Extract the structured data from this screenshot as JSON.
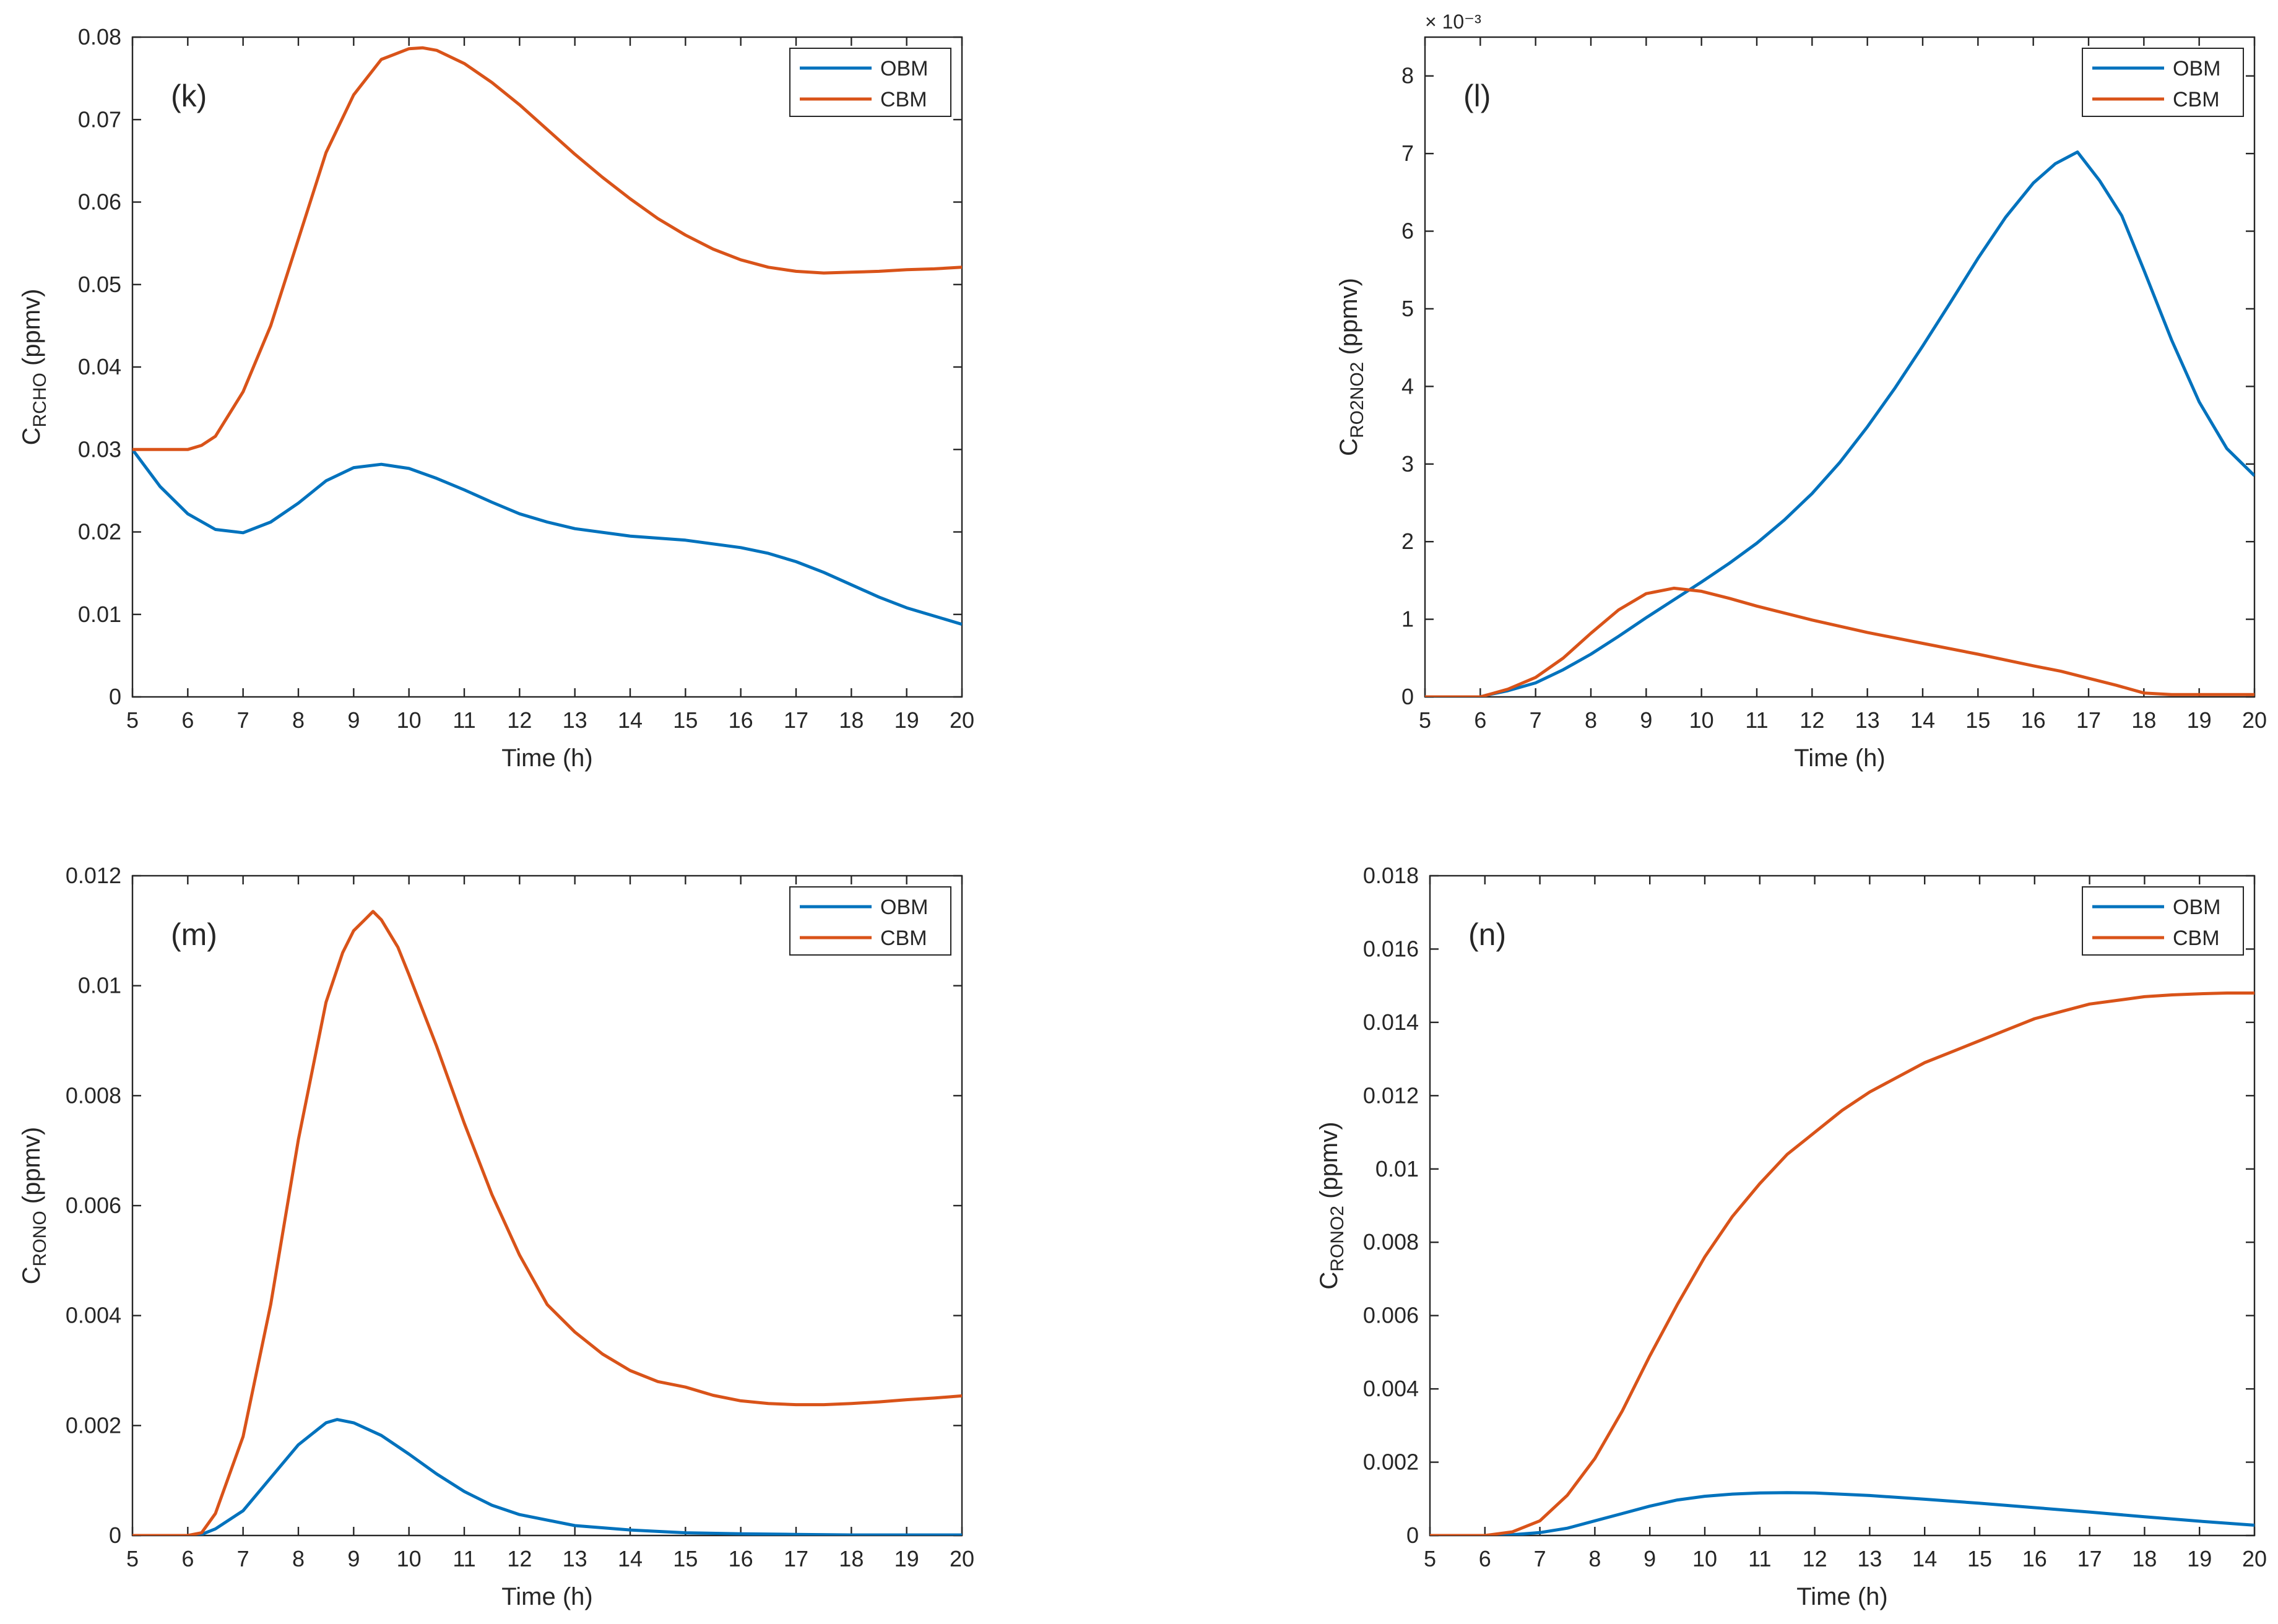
{
  "chart_data": [
    {
      "type": "line",
      "panel": "(k)",
      "xlabel": "Time (h)",
      "ylabel_main": "C",
      "ylabel_sub": "RCHO",
      "ylabel_unit": " (ppmv)",
      "xlim": [
        5,
        20
      ],
      "ylim": [
        0,
        0.08
      ],
      "xticks": [
        5,
        6,
        7,
        8,
        9,
        10,
        11,
        12,
        13,
        14,
        15,
        16,
        17,
        18,
        19,
        20
      ],
      "yticks": [
        0,
        0.01,
        0.02,
        0.03,
        0.04,
        0.05,
        0.06,
        0.07,
        0.08
      ],
      "ytick_labels": [
        "0",
        "0.01",
        "0.02",
        "0.03",
        "0.04",
        "0.05",
        "0.06",
        "0.07",
        "0.08"
      ],
      "exponent_label": "",
      "legend": [
        "OBM",
        "CBM"
      ],
      "series": [
        {
          "name": "OBM",
          "color": "#0072BD",
          "x": [
            5,
            5.5,
            6,
            6.5,
            7,
            7.5,
            8,
            8.5,
            9,
            9.5,
            10,
            10.5,
            11,
            11.5,
            12,
            12.5,
            13,
            14,
            15,
            16,
            16.5,
            17,
            17.5,
            18,
            18.5,
            19,
            19.5,
            20
          ],
          "y": [
            0.03,
            0.0255,
            0.0222,
            0.0203,
            0.0199,
            0.0212,
            0.0235,
            0.0262,
            0.0278,
            0.0282,
            0.0277,
            0.0265,
            0.0251,
            0.0236,
            0.0222,
            0.0212,
            0.0204,
            0.0195,
            0.019,
            0.0181,
            0.0174,
            0.0164,
            0.0151,
            0.0136,
            0.0121,
            0.0108,
            0.0098,
            0.0088
          ]
        },
        {
          "name": "CBM",
          "color": "#D95319",
          "x": [
            5,
            5.5,
            6,
            6.25,
            6.5,
            7,
            7.5,
            8,
            8.5,
            9,
            9.5,
            10,
            10.25,
            10.5,
            11,
            11.5,
            12,
            12.5,
            13,
            13.5,
            14,
            14.5,
            15,
            15.5,
            16,
            16.5,
            17,
            17.5,
            18,
            18.5,
            19,
            19.5,
            20
          ],
          "y": [
            0.03,
            0.03,
            0.03,
            0.0305,
            0.0316,
            0.037,
            0.045,
            0.0555,
            0.066,
            0.073,
            0.0773,
            0.0786,
            0.0787,
            0.0784,
            0.0768,
            0.0745,
            0.0718,
            0.0688,
            0.0658,
            0.063,
            0.0604,
            0.058,
            0.056,
            0.0543,
            0.053,
            0.0521,
            0.0516,
            0.0514,
            0.0515,
            0.0516,
            0.0518,
            0.0519,
            0.0521
          ]
        }
      ]
    },
    {
      "type": "line",
      "panel": "(l)",
      "xlabel": "Time (h)",
      "ylabel_main": "C",
      "ylabel_sub": "RO2NO2",
      "ylabel_unit": " (ppmv)",
      "xlim": [
        5,
        20
      ],
      "ylim": [
        0,
        8.5
      ],
      "xticks": [
        5,
        6,
        7,
        8,
        9,
        10,
        11,
        12,
        13,
        14,
        15,
        16,
        17,
        18,
        19,
        20
      ],
      "yticks": [
        0,
        1,
        2,
        3,
        4,
        5,
        6,
        7,
        8
      ],
      "ytick_labels": [
        "0",
        "1",
        "2",
        "3",
        "4",
        "5",
        "6",
        "7",
        "8"
      ],
      "exponent_label": "× 10⁻³",
      "legend": [
        "OBM",
        "CBM"
      ],
      "series": [
        {
          "name": "OBM",
          "color": "#0072BD",
          "x": [
            5,
            6,
            6.1,
            6.5,
            7,
            7.5,
            8,
            8.5,
            9,
            9.5,
            10,
            10.5,
            11,
            11.5,
            12,
            12.5,
            13,
            13.5,
            14,
            14.5,
            15,
            15.5,
            16,
            16.4,
            16.8,
            17.2,
            17.6,
            18,
            18.5,
            19,
            19.5,
            20
          ],
          "y": [
            0,
            0,
            0.02,
            0.08,
            0.18,
            0.35,
            0.55,
            0.78,
            1.02,
            1.25,
            1.48,
            1.72,
            1.98,
            2.28,
            2.62,
            3.02,
            3.48,
            3.98,
            4.52,
            5.08,
            5.65,
            6.18,
            6.62,
            6.87,
            7.02,
            6.65,
            6.2,
            5.5,
            4.6,
            3.8,
            3.2,
            2.85
          ]
        },
        {
          "name": "CBM",
          "color": "#D95319",
          "x": [
            5,
            6,
            6.1,
            6.5,
            7,
            7.5,
            8,
            8.5,
            9,
            9.5,
            10,
            10.5,
            11,
            12,
            13,
            14,
            15,
            16,
            16.5,
            17,
            17.5,
            18,
            18.5,
            19,
            20
          ],
          "y": [
            0,
            0,
            0.02,
            0.1,
            0.25,
            0.5,
            0.82,
            1.12,
            1.33,
            1.4,
            1.36,
            1.27,
            1.17,
            0.99,
            0.83,
            0.69,
            0.55,
            0.4,
            0.33,
            0.24,
            0.15,
            0.05,
            0.03,
            0.03,
            0.03
          ]
        }
      ]
    },
    {
      "type": "line",
      "panel": "(m)",
      "xlabel": "Time (h)",
      "ylabel_main": "C",
      "ylabel_sub": "RONO",
      "ylabel_unit": " (ppmv)",
      "xlim": [
        5,
        20
      ],
      "ylim": [
        0,
        0.012
      ],
      "xticks": [
        5,
        6,
        7,
        8,
        9,
        10,
        11,
        12,
        13,
        14,
        15,
        16,
        17,
        18,
        19,
        20
      ],
      "yticks": [
        0,
        0.002,
        0.004,
        0.006,
        0.008,
        0.01,
        0.012
      ],
      "ytick_labels": [
        "0",
        "0.002",
        "0.004",
        "0.006",
        "0.008",
        "0.01",
        "0.012"
      ],
      "exponent_label": "",
      "legend": [
        "OBM",
        "CBM"
      ],
      "series": [
        {
          "name": "OBM",
          "color": "#0072BD",
          "x": [
            5,
            6,
            6.25,
            6.5,
            7,
            7.5,
            8,
            8.5,
            8.7,
            9,
            9.5,
            10,
            10.5,
            11,
            11.5,
            12,
            13,
            14,
            15,
            16,
            17,
            18,
            19,
            20
          ],
          "y": [
            0,
            0,
            2e-05,
            0.00012,
            0.00045,
            0.00105,
            0.00165,
            0.00205,
            0.00211,
            0.00205,
            0.00182,
            0.00148,
            0.00112,
            0.0008,
            0.00055,
            0.00038,
            0.00018,
            0.0001,
            5e-05,
            3e-05,
            2e-05,
            1e-05,
            1e-05,
            1e-05
          ]
        },
        {
          "name": "CBM",
          "color": "#D95319",
          "x": [
            5,
            6,
            6.25,
            6.5,
            7,
            7.5,
            8,
            8.5,
            8.8,
            9,
            9.2,
            9.35,
            9.5,
            9.8,
            10,
            10.5,
            11,
            11.5,
            12,
            12.5,
            13,
            13.5,
            14,
            14.5,
            15,
            15.5,
            16,
            16.5,
            17,
            17.5,
            18,
            18.5,
            19,
            19.5,
            20
          ],
          "y": [
            0,
            0,
            5e-05,
            0.0004,
            0.0018,
            0.0042,
            0.0072,
            0.0097,
            0.0106,
            0.011,
            0.0112,
            0.01135,
            0.0112,
            0.0107,
            0.0102,
            0.0089,
            0.0075,
            0.0062,
            0.0051,
            0.0042,
            0.0037,
            0.0033,
            0.003,
            0.0028,
            0.0027,
            0.00255,
            0.00245,
            0.0024,
            0.00238,
            0.00238,
            0.0024,
            0.00243,
            0.00247,
            0.0025,
            0.00254
          ]
        }
      ]
    },
    {
      "type": "line",
      "panel": "(n)",
      "xlabel": "Time (h)",
      "ylabel_main": "C",
      "ylabel_sub": "RONO2",
      "ylabel_unit": " (ppmv)",
      "xlim": [
        5,
        20
      ],
      "ylim": [
        0,
        0.018
      ],
      "xticks": [
        5,
        6,
        7,
        8,
        9,
        10,
        11,
        12,
        13,
        14,
        15,
        16,
        17,
        18,
        19,
        20
      ],
      "yticks": [
        0,
        0.002,
        0.004,
        0.006,
        0.008,
        0.01,
        0.012,
        0.014,
        0.016,
        0.018
      ],
      "ytick_labels": [
        "0",
        "0.002",
        "0.004",
        "0.006",
        "0.008",
        "0.01",
        "0.012",
        "0.014",
        "0.016",
        "0.018"
      ],
      "exponent_label": "",
      "legend": [
        "OBM",
        "CBM"
      ],
      "series": [
        {
          "name": "OBM",
          "color": "#0072BD",
          "x": [
            5,
            6,
            6.5,
            7,
            7.5,
            8,
            8.5,
            9,
            9.5,
            10,
            10.5,
            11,
            11.5,
            12,
            13,
            14,
            15,
            16,
            17,
            18,
            19,
            20
          ],
          "y": [
            0,
            0,
            2e-05,
            8e-05,
            0.0002,
            0.0004,
            0.0006,
            0.0008,
            0.00097,
            0.00107,
            0.00113,
            0.00116,
            0.00117,
            0.00116,
            0.00109,
            0.00099,
            0.00088,
            0.00076,
            0.00064,
            0.00051,
            0.00039,
            0.00028
          ]
        },
        {
          "name": "CBM",
          "color": "#D95319",
          "x": [
            5,
            6,
            6.5,
            7,
            7.5,
            8,
            8.5,
            9,
            9.5,
            10,
            10.5,
            11,
            11.5,
            12,
            12.5,
            13,
            13.5,
            14,
            14.5,
            15,
            15.5,
            16,
            16.5,
            17,
            17.5,
            18,
            18.5,
            19,
            19.5,
            20
          ],
          "y": [
            0,
            0,
            0.0001,
            0.0004,
            0.0011,
            0.0021,
            0.0034,
            0.0049,
            0.0063,
            0.0076,
            0.0087,
            0.0096,
            0.0104,
            0.011,
            0.0116,
            0.0121,
            0.0125,
            0.0129,
            0.0132,
            0.0135,
            0.0138,
            0.0141,
            0.0143,
            0.0145,
            0.0146,
            0.0147,
            0.01475,
            0.01478,
            0.0148,
            0.0148
          ]
        }
      ]
    }
  ]
}
